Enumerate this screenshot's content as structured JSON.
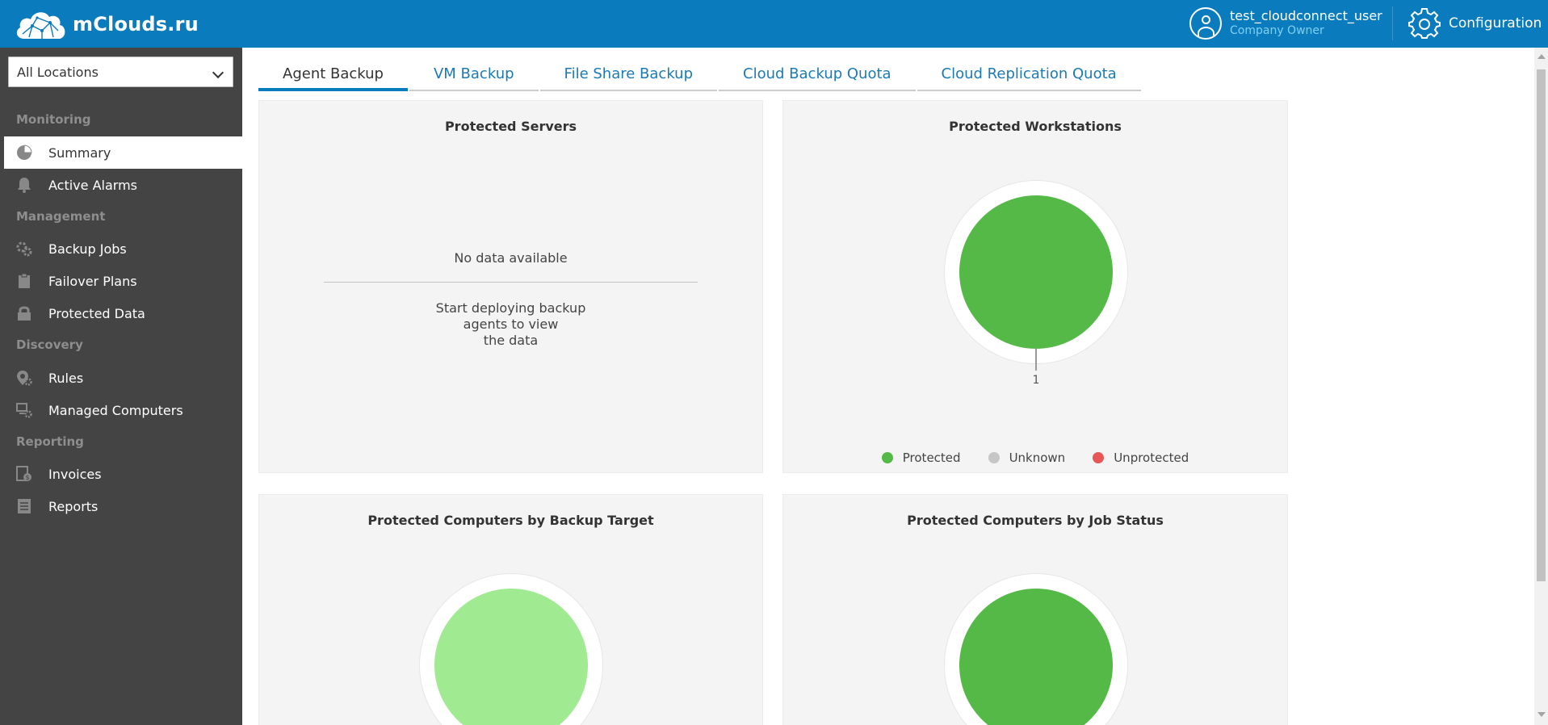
{
  "header": {
    "logo_text": "mClouds.ru",
    "logo_icon": "cloud-network-icon",
    "user_name": "test_cloudconnect_user",
    "user_role": "Company Owner",
    "config_label": "Configuration",
    "colors": {
      "bar": "#0a7bbd",
      "role": "#7fd0f5"
    }
  },
  "sidebar": {
    "location_selected": "All Locations",
    "sections": {
      "monitoring": "Monitoring",
      "management": "Management",
      "discovery": "Discovery",
      "reporting": "Reporting"
    },
    "items": [
      {
        "label": "Summary",
        "icon": "pie-chart-icon",
        "active": true
      },
      {
        "label": "Active Alarms",
        "icon": "bell-icon"
      },
      {
        "label": "Backup Jobs",
        "icon": "gears-icon"
      },
      {
        "label": "Failover Plans",
        "icon": "clipboard-icon"
      },
      {
        "label": "Protected Data",
        "icon": "lock-icon"
      },
      {
        "label": "Rules",
        "icon": "map-pin-gear-icon"
      },
      {
        "label": "Managed Computers",
        "icon": "computers-gear-icon"
      },
      {
        "label": "Invoices",
        "icon": "invoice-icon"
      },
      {
        "label": "Reports",
        "icon": "report-icon"
      }
    ]
  },
  "tabs": [
    {
      "label": "Agent Backup",
      "active": true
    },
    {
      "label": "VM Backup"
    },
    {
      "label": "File Share Backup"
    },
    {
      "label": "Cloud Backup Quota"
    },
    {
      "label": "Cloud Replication Quota"
    }
  ],
  "panels": {
    "servers": {
      "title": "Protected Servers",
      "empty_title": "No data available",
      "empty_line1": "Start deploying backup",
      "empty_line2": "agents to view",
      "empty_line3": "the data"
    },
    "workstations": {
      "title": "Protected Workstations",
      "value_label": "1",
      "legend": [
        {
          "label": "Protected",
          "color": "#55b947"
        },
        {
          "label": "Unknown",
          "color": "#c6c6c6"
        },
        {
          "label": "Unprotected",
          "color": "#e85758"
        }
      ]
    },
    "by_target": {
      "title": "Protected Computers by Backup Target",
      "color": "#a0ea92"
    },
    "by_status": {
      "title": "Protected Computers by Job Status",
      "color": "#55b947"
    }
  }
}
